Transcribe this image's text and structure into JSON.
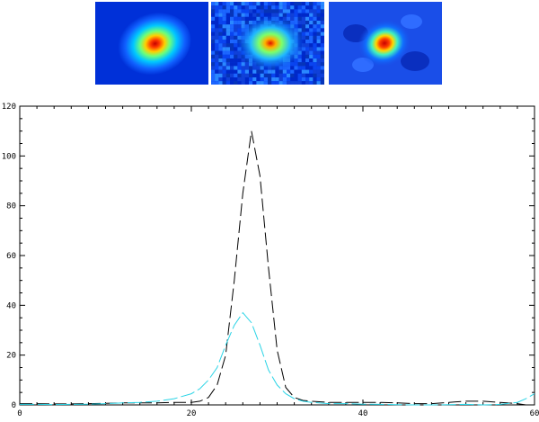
{
  "panels": [
    {
      "noise": "smooth"
    },
    {
      "noise": "pixelated"
    },
    {
      "noise": "ringing"
    }
  ],
  "colors": {
    "black_series": "#000000",
    "cyan_series": "#2ad4e6"
  },
  "chart_data": {
    "type": "line",
    "xlim": [
      0,
      60
    ],
    "ylim": [
      0,
      120
    ],
    "xticks": [
      "0",
      "20",
      "40",
      "60"
    ],
    "yticks": [
      "0",
      "20",
      "40",
      "60",
      "80",
      "100",
      "120"
    ],
    "series": [
      {
        "style": "dashed",
        "color": "#000000",
        "x": [
          0,
          2,
          4,
          6,
          8,
          10,
          12,
          14,
          16,
          18,
          20,
          21,
          22,
          23,
          24,
          25,
          26,
          27,
          28,
          29,
          30,
          31,
          32,
          33,
          34,
          36,
          38,
          40,
          42,
          44,
          46,
          48,
          50,
          52,
          54,
          56,
          58,
          59,
          60
        ],
        "y": [
          0.5,
          0.5,
          0.4,
          0.4,
          0.5,
          0.6,
          0.8,
          0.8,
          0.8,
          1.0,
          1.0,
          1.5,
          3.0,
          8.0,
          20.0,
          50.0,
          85.0,
          110.0,
          92.0,
          55.0,
          22.0,
          7.0,
          3.0,
          1.8,
          1.5,
          1.0,
          1.0,
          1.0,
          1.0,
          0.8,
          0.5,
          0.5,
          1.0,
          1.5,
          1.5,
          1.0,
          0.5,
          0.0,
          0.0
        ]
      },
      {
        "style": "dashed",
        "color": "#2ad4e6",
        "x": [
          0,
          2,
          4,
          6,
          8,
          10,
          12,
          14,
          16,
          18,
          20,
          21,
          22,
          23,
          24,
          25,
          26,
          27,
          28,
          29,
          30,
          31,
          32,
          33,
          34,
          36,
          38,
          40,
          42,
          44,
          46,
          48,
          50,
          52,
          54,
          56,
          58,
          59,
          60
        ],
        "y": [
          0.2,
          0.2,
          0.1,
          0.2,
          0.3,
          0.5,
          0.8,
          1.0,
          1.5,
          2.5,
          4.5,
          6.5,
          10.0,
          15.0,
          24.0,
          32.0,
          37.0,
          33.0,
          24.0,
          14.0,
          8.0,
          4.5,
          2.5,
          1.5,
          1.0,
          0.5,
          0.5,
          0.3,
          0.2,
          0.1,
          0.0,
          0.0,
          0.1,
          0.2,
          0.0,
          0.2,
          1.0,
          2.5,
          4.5
        ]
      }
    ]
  }
}
